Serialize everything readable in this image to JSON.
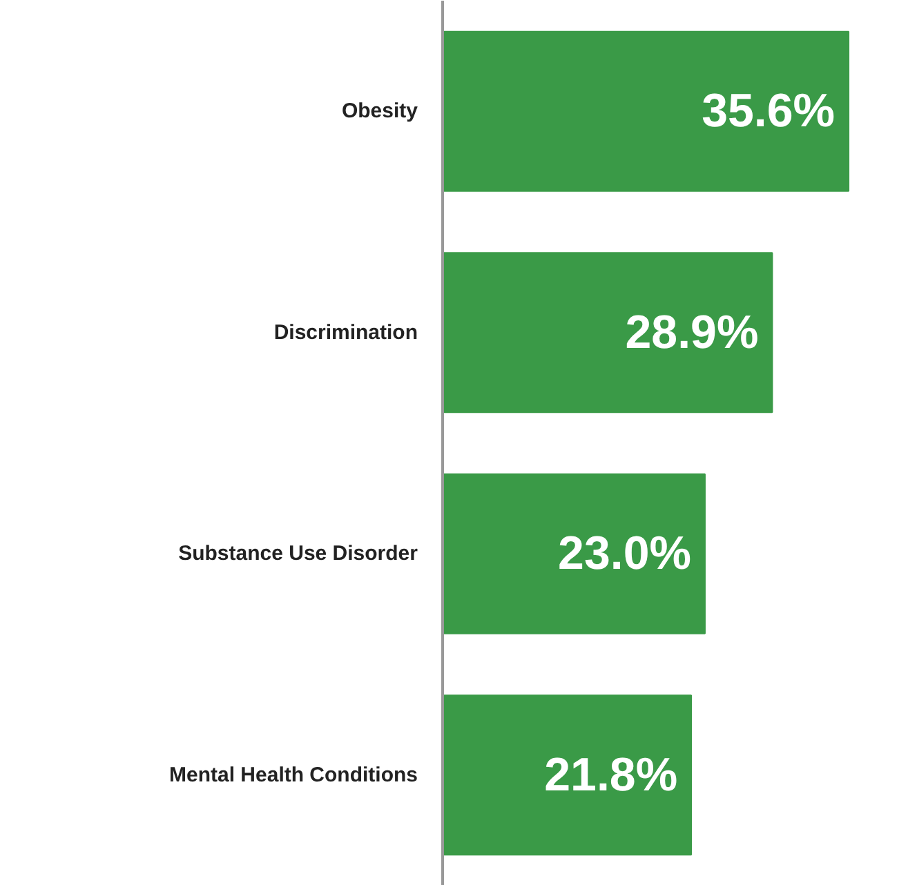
{
  "chart_data": {
    "type": "bar",
    "orientation": "horizontal",
    "categories": [
      "Obesity",
      "Discrimination",
      "Substance Use Disorder",
      "Mental Health Conditions"
    ],
    "values": [
      35.6,
      28.9,
      23.0,
      21.8
    ],
    "value_labels": [
      "35.6%",
      "28.9%",
      "23.0%",
      "21.8%"
    ],
    "color": "#3a9a47",
    "grid": false
  }
}
